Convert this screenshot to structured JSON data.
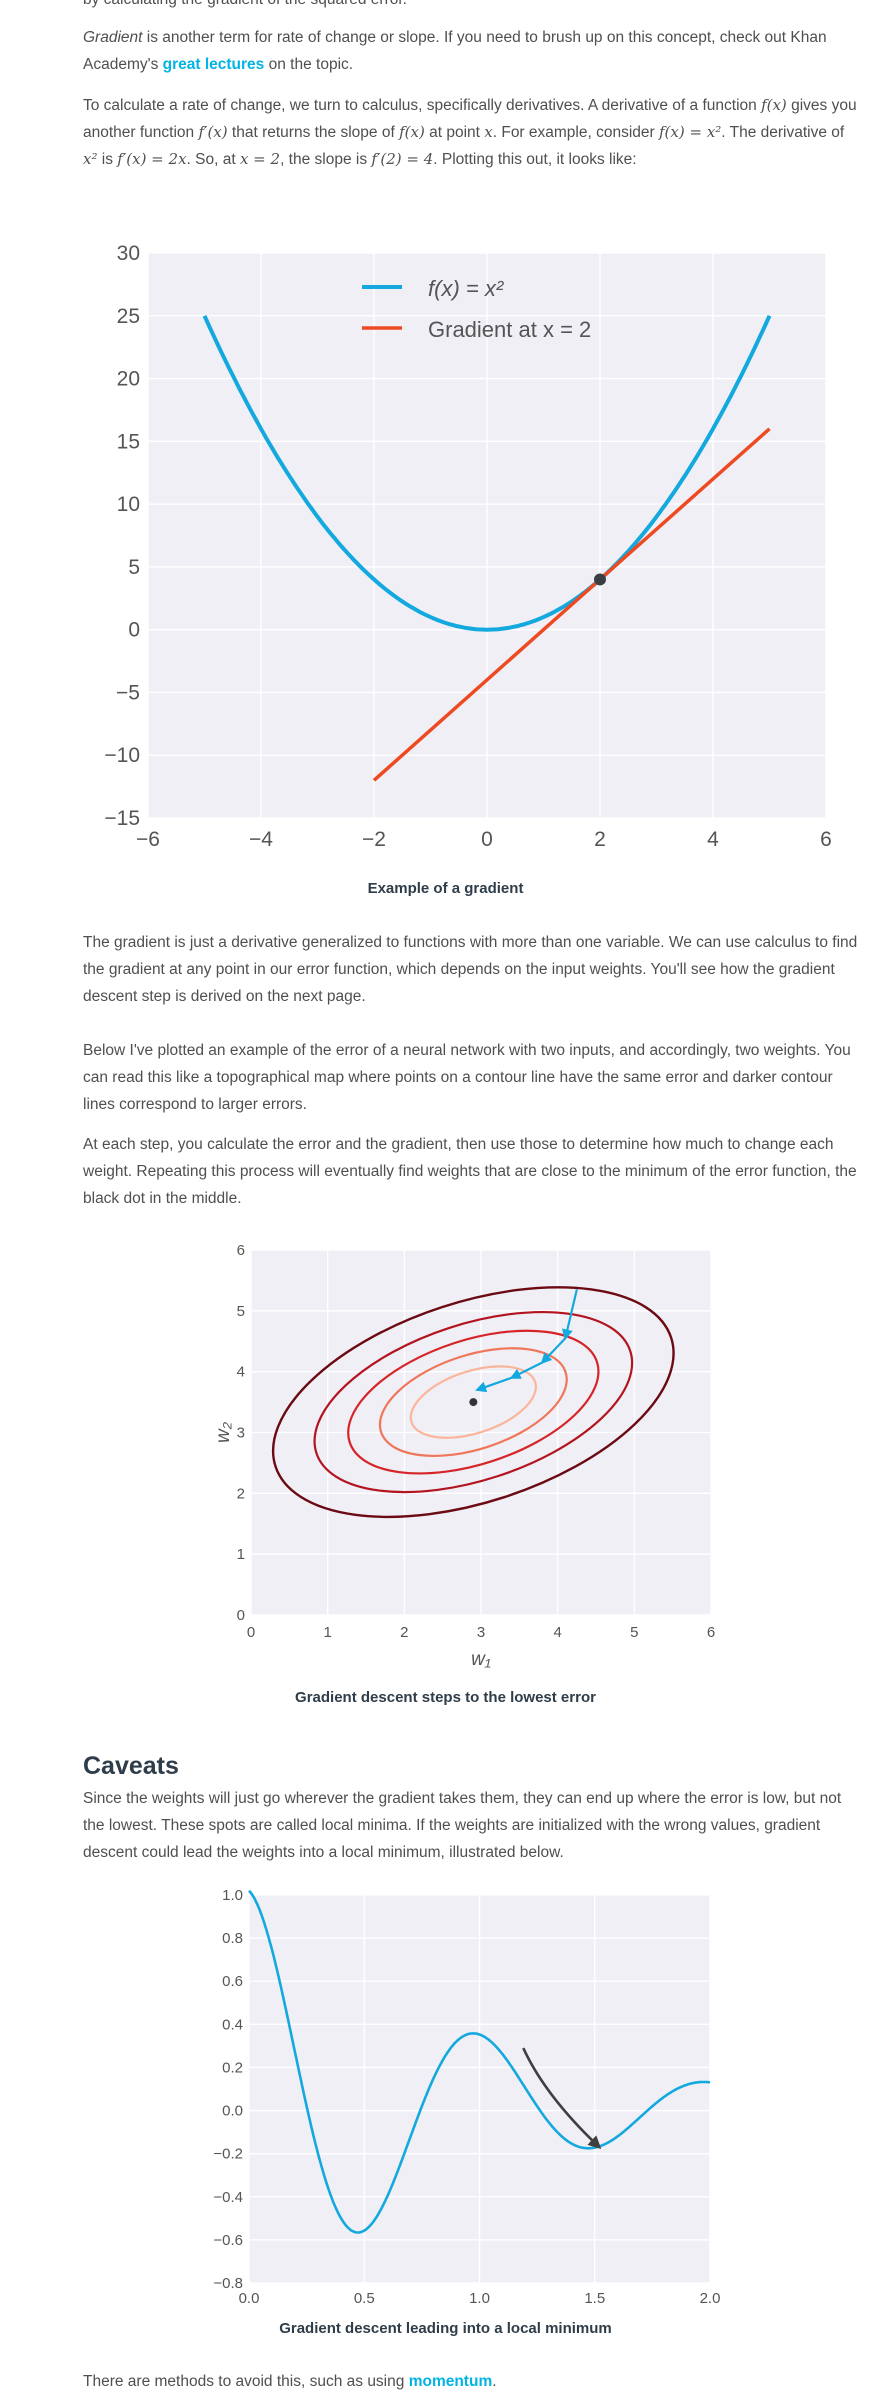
{
  "intro_cut": "by calculating the gradient of the squared error.",
  "p1": {
    "term": "Gradient",
    "text_a": " is another term for rate of change or slope. If you need to brush up on this concept, check out Khan Academy's ",
    "link": "great lectures",
    "text_b": " on the topic."
  },
  "p2": {
    "a": "To calculate a rate of change, we turn to calculus, specifically derivatives. A derivative of a function ",
    "fx": "f(x)",
    "b": " gives you another function ",
    "fpx": "f′(x)",
    "c": " that returns the slope of ",
    "fx2": "f(x)",
    "d": " at point ",
    "x": "x",
    "e": ". For example, consider ",
    "eq1": "f(x) = x²",
    "f": ". The derivative of ",
    "x2": "x²",
    "g": " is ",
    "eq2": "f′(x) = 2x",
    "h": ". So, at ",
    "eq3": "x = 2",
    "i": ", the slope is ",
    "eq4": "f′(2) = 4",
    "j": ". Plotting this out, it looks like:"
  },
  "caption1": "Example of a gradient",
  "p3": "The gradient is just a derivative generalized to functions with more than one variable. We can use calculus to find the gradient at any point in our error function, which depends on the input weights. You'll see how the gradient descent step is derived on the next page.",
  "p4": "Below I've plotted an example of the error of a neural network with two inputs, and accordingly, two weights. You can read this like a topographical map where points on a contour line have the same error and darker contour lines correspond to larger errors.",
  "p5": "At each step, you calculate the error and the gradient, then use those to determine how much to change each weight. Repeating this process will eventually find weights that are close to the minimum of the error function, the black dot in the middle.",
  "caption2": "Gradient descent steps to the lowest error",
  "caveats_heading": "Caveats",
  "p6": "Since the weights will just go wherever the gradient takes them, they can end up where the error is low, but not the lowest. These spots are called local minima. If the weights are initialized with the wrong values, gradient descent could lead the weights into a local minimum, illustrated below.",
  "caption3": "Gradient descent leading into a local minimum",
  "p7": {
    "text": "There are methods to avoid this, such as using ",
    "link": "momentum",
    "end": "."
  },
  "colors": {
    "blue": "#13a9de",
    "orange": "#ee4a22",
    "dark": "#3f3f3f",
    "bg": "#f0eff6"
  },
  "chart_data": [
    {
      "type": "line",
      "title": "",
      "xlabel": "",
      "ylabel": "",
      "xlim": [
        -6,
        6
      ],
      "ylim": [
        -15,
        30
      ],
      "x_ticks": [
        "−6",
        "−4",
        "−2",
        "0",
        "2",
        "4",
        "6"
      ],
      "y_ticks": [
        "30",
        "25",
        "20",
        "15",
        "10",
        "5",
        "0",
        "−5",
        "−10",
        "−15"
      ],
      "series": [
        {
          "name": "f(x) = x²",
          "function": "x^2",
          "x_range": [
            -5,
            5
          ]
        },
        {
          "name": "Gradient at x = 2",
          "function": "4x - 4",
          "x_range": [
            -2,
            5
          ]
        }
      ],
      "point": {
        "x": 2,
        "y": 4
      },
      "legend": "top-left"
    },
    {
      "type": "contour",
      "title": "",
      "xlabel": "w₁",
      "ylabel": "w₂",
      "xlim": [
        0,
        6
      ],
      "ylim": [
        0,
        6
      ],
      "x_ticks": [
        "0",
        "1",
        "2",
        "3",
        "4",
        "5",
        "6"
      ],
      "y_ticks": [
        "6",
        "5",
        "4",
        "3",
        "2",
        "1",
        "0"
      ],
      "center": {
        "x": 2.9,
        "y": 3.5
      },
      "levels": 5,
      "steps": [
        [
          4.25,
          5.35
        ],
        [
          4.1,
          4.55
        ],
        [
          3.8,
          4.15
        ],
        [
          3.4,
          3.9
        ],
        [
          2.95,
          3.7
        ]
      ],
      "grid": true
    },
    {
      "type": "line",
      "title": "",
      "xlabel": "",
      "ylabel": "",
      "xlim": [
        0,
        2
      ],
      "ylim": [
        -0.8,
        1.0
      ],
      "x_ticks": [
        "0.0",
        "0.5",
        "1.0",
        "1.5",
        "2.0"
      ],
      "y_ticks": [
        "1.0",
        "0.8",
        "0.6",
        "0.4",
        "0.2",
        "0.0",
        "−0.2",
        "−0.4",
        "−0.6",
        "−0.8"
      ],
      "series": [
        {
          "function": "damped cosine (local minimum example)",
          "x_range": [
            0,
            2
          ]
        }
      ],
      "arrow": {
        "from": [
          1.19,
          0.29
        ],
        "to": [
          1.52,
          -0.17
        ]
      }
    }
  ]
}
